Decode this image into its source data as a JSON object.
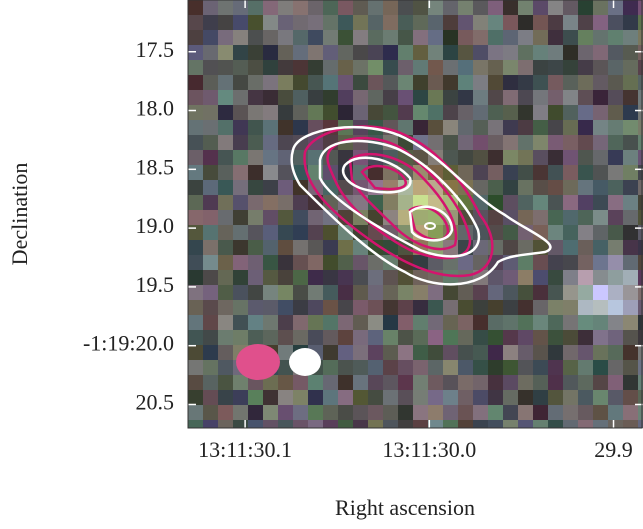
{
  "chart_data": {
    "type": "image",
    "xlabel": "Right ascension",
    "ylabel": "Declination",
    "xlim": [
      30.131,
      29.884
    ],
    "xticks": [
      {
        "value": 30.1,
        "label": "13:11:30.1"
      },
      {
        "value": 30.0,
        "label": "13:11:30.0"
      },
      29.9
    ],
    "ylim": [
      20.7,
      17.06
    ],
    "yticks": [
      17.5,
      {
        "value": 18,
        "label": "18.0"
      },
      18.5,
      {
        "value": 19,
        "label": "19.0"
      },
      19.5,
      {
        "value": 20,
        "label": "-1:19:20.0"
      },
      20.5
    ]
  }
}
